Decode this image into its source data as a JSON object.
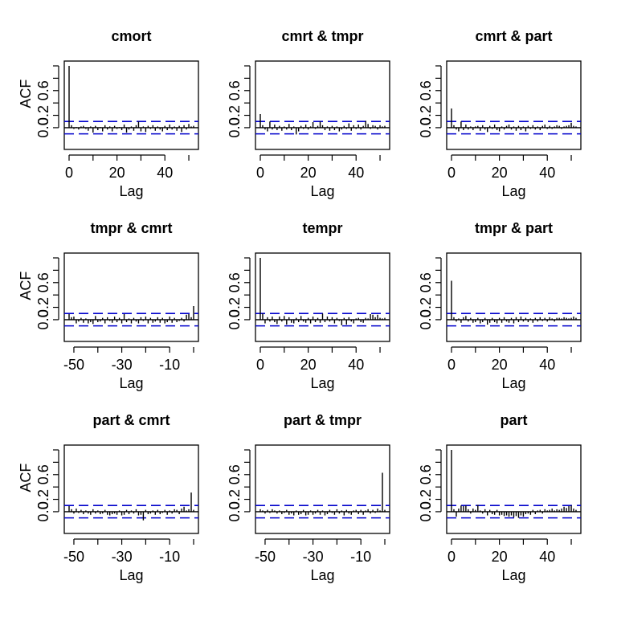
{
  "chart_data": [
    {
      "type": "bar",
      "title": "cmort",
      "xlabel": "Lag",
      "ylabel": "ACF",
      "xlim": [
        0,
        52
      ],
      "ylim": [
        -0.3,
        1.0
      ],
      "xticks": [
        0,
        20,
        40
      ],
      "yticks": [
        0,
        0.2,
        0.6
      ],
      "ytick_labels": [
        "0.0",
        "0.2",
        "0.6"
      ],
      "ci": 0.1,
      "x": [
        0,
        1,
        2,
        3,
        4,
        5,
        6,
        7,
        8,
        9,
        10,
        11,
        12,
        13,
        14,
        15,
        16,
        17,
        18,
        19,
        20,
        21,
        22,
        23,
        24,
        25,
        26,
        27,
        28,
        29,
        30,
        31,
        32,
        33,
        34,
        35,
        36,
        37,
        38,
        39,
        40,
        41,
        42,
        43,
        44,
        45,
        46,
        47,
        48,
        49,
        50,
        51,
        52
      ],
      "values": [
        1.0,
        0.04,
        -0.02,
        0.01,
        -0.03,
        0.02,
        0.03,
        -0.02,
        -0.05,
        0.02,
        -0.08,
        0.03,
        -0.04,
        0.01,
        -0.06,
        0.04,
        -0.03,
        0.02,
        -0.06,
        0.03,
        -0.02,
        0.01,
        -0.04,
        0.05,
        -0.08,
        -0.03,
        0.02,
        -0.05,
        0.04,
        0.1,
        -0.06,
        0.02,
        -0.07,
        0.03,
        -0.02,
        0.04,
        -0.05,
        0.02,
        -0.03,
        -0.06,
        0.03,
        -0.04,
        0.05,
        -0.03,
        0.02,
        -0.05,
        0.03,
        -0.07,
        0.04,
        -0.03,
        0.06,
        0.02,
        0.03
      ]
    },
    {
      "type": "bar",
      "title": "cmrt & tmpr",
      "xlabel": "Lag",
      "ylabel": "",
      "xlim": [
        0,
        52
      ],
      "ylim": [
        -0.3,
        1.0
      ],
      "xticks": [
        0,
        20,
        40
      ],
      "yticks": [
        0,
        0.2,
        0.6
      ],
      "ytick_labels": [
        "0.0",
        "0.2",
        "0.6"
      ],
      "ci": 0.1,
      "x": [
        0,
        1,
        2,
        3,
        4,
        5,
        6,
        7,
        8,
        9,
        10,
        11,
        12,
        13,
        14,
        15,
        16,
        17,
        18,
        19,
        20,
        21,
        22,
        23,
        24,
        25,
        26,
        27,
        28,
        29,
        30,
        31,
        32,
        33,
        34,
        35,
        36,
        37,
        38,
        39,
        40,
        41,
        42,
        43,
        44,
        45,
        46,
        47,
        48,
        49,
        50,
        51,
        52
      ],
      "values": [
        0.22,
        0.04,
        -0.03,
        -0.06,
        0.1,
        -0.03,
        0.05,
        -0.04,
        0.03,
        -0.05,
        0.02,
        -0.03,
        0.06,
        -0.04,
        0.02,
        -0.11,
        -0.06,
        0.03,
        -0.02,
        0.05,
        -0.03,
        0.02,
        0.09,
        -0.02,
        0.03,
        0.1,
        0.04,
        -0.04,
        0.02,
        -0.05,
        0.03,
        -0.04,
        0.02,
        -0.06,
        -0.03,
        0.03,
        -0.02,
        0.07,
        -0.05,
        0.04,
        -0.02,
        0.05,
        -0.03,
        0.03,
        0.11,
        0.06,
        -0.02,
        0.04,
        0.03,
        -0.03,
        0.04,
        0.02,
        0.03
      ]
    },
    {
      "type": "bar",
      "title": "cmrt & part",
      "xlabel": "Lag",
      "ylabel": "",
      "xlim": [
        0,
        52
      ],
      "ylim": [
        -0.3,
        1.0
      ],
      "xticks": [
        0,
        20,
        40
      ],
      "yticks": [
        0,
        0.2,
        0.6
      ],
      "ytick_labels": [
        "0.0",
        "0.2",
        "0.6"
      ],
      "ci": 0.1,
      "x": [
        0,
        1,
        2,
        3,
        4,
        5,
        6,
        7,
        8,
        9,
        10,
        11,
        12,
        13,
        14,
        15,
        16,
        17,
        18,
        19,
        20,
        21,
        22,
        23,
        24,
        25,
        26,
        27,
        28,
        29,
        30,
        31,
        32,
        33,
        34,
        35,
        36,
        37,
        38,
        39,
        40,
        41,
        42,
        43,
        44,
        45,
        46,
        47,
        48,
        49,
        50,
        51,
        52
      ],
      "values": [
        0.31,
        0.04,
        -0.03,
        -0.06,
        0.1,
        -0.04,
        0.05,
        -0.03,
        0.02,
        -0.04,
        0.02,
        0.03,
        -0.05,
        0.04,
        -0.03,
        -0.07,
        0.03,
        -0.02,
        0.05,
        -0.04,
        -0.06,
        0.02,
        -0.03,
        0.03,
        0.05,
        -0.03,
        0.02,
        -0.05,
        0.03,
        -0.04,
        0.02,
        -0.06,
        0.03,
        -0.02,
        0.04,
        -0.03,
        0.02,
        -0.04,
        0.03,
        0.05,
        -0.02,
        0.03,
        -0.02,
        0.02,
        0.04,
        0.03,
        -0.02,
        0.02,
        0.03,
        0.04,
        0.08,
        0.03,
        0.02
      ]
    },
    {
      "type": "bar",
      "title": "tmpr & cmrt",
      "xlabel": "Lag",
      "ylabel": "ACF",
      "xlim": [
        -52,
        0
      ],
      "ylim": [
        -0.3,
        1.0
      ],
      "xticks": [
        -50,
        -30,
        -10
      ],
      "yticks": [
        0,
        0.2,
        0.6
      ],
      "ytick_labels": [
        "0.0",
        "0.2",
        "0.6"
      ],
      "ci": 0.1,
      "x": [
        -52,
        -51,
        -50,
        -49,
        -48,
        -47,
        -46,
        -45,
        -44,
        -43,
        -42,
        -41,
        -40,
        -39,
        -38,
        -37,
        -36,
        -35,
        -34,
        -33,
        -32,
        -31,
        -30,
        -29,
        -28,
        -27,
        -26,
        -25,
        -24,
        -23,
        -22,
        -21,
        -20,
        -19,
        -18,
        -17,
        -16,
        -15,
        -14,
        -13,
        -12,
        -11,
        -10,
        -9,
        -8,
        -7,
        -6,
        -5,
        -4,
        -3,
        -2,
        -1,
        0
      ],
      "values": [
        0.09,
        0.04,
        0.05,
        -0.06,
        -0.03,
        0.03,
        -0.05,
        0.02,
        -0.06,
        -0.04,
        -0.07,
        0.06,
        -0.04,
        -0.03,
        0.03,
        -0.06,
        0.04,
        -0.02,
        -0.05,
        0.05,
        -0.04,
        0.03,
        -0.06,
        0.09,
        -0.04,
        0.02,
        -0.06,
        0.03,
        -0.03,
        -0.06,
        0.04,
        -0.02,
        0.05,
        -0.06,
        0.03,
        -0.05,
        -0.03,
        0.04,
        -0.05,
        0.03,
        -0.06,
        -0.04,
        0.05,
        -0.05,
        0.03,
        -0.04,
        -0.02,
        0.03,
        -0.03,
        0.08,
        0.09,
        0.04,
        0.22
      ]
    },
    {
      "type": "bar",
      "title": "tempr",
      "xlabel": "Lag",
      "ylabel": "",
      "xlim": [
        0,
        52
      ],
      "ylim": [
        -0.3,
        1.0
      ],
      "xticks": [
        0,
        20,
        40
      ],
      "yticks": [
        0,
        0.2,
        0.6
      ],
      "ytick_labels": [
        "0.0",
        "0.2",
        "0.6"
      ],
      "ci": 0.1,
      "x": [
        0,
        1,
        2,
        3,
        4,
        5,
        6,
        7,
        8,
        9,
        10,
        11,
        12,
        13,
        14,
        15,
        16,
        17,
        18,
        19,
        20,
        21,
        22,
        23,
        24,
        25,
        26,
        27,
        28,
        29,
        30,
        31,
        32,
        33,
        34,
        35,
        36,
        37,
        38,
        39,
        40,
        41,
        42,
        43,
        44,
        45,
        46,
        47,
        48,
        49,
        50,
        51,
        52
      ],
      "values": [
        1.0,
        0.1,
        -0.06,
        0.04,
        -0.03,
        0.05,
        -0.04,
        -0.07,
        0.05,
        -0.03,
        0.06,
        -0.08,
        0.04,
        -0.05,
        -0.06,
        0.03,
        -0.04,
        0.06,
        -0.03,
        -0.05,
        0.03,
        -0.06,
        0.05,
        -0.04,
        0.03,
        -0.05,
        0.1,
        -0.04,
        0.05,
        -0.03,
        0.04,
        -0.06,
        0.03,
        -0.02,
        -0.09,
        0.03,
        -0.08,
        0.04,
        -0.03,
        -0.06,
        0.02,
        0.03,
        -0.04,
        -0.05,
        0.03,
        0.02,
        0.09,
        0.08,
        0.04,
        0.08,
        0.03,
        0.02,
        0.03
      ]
    },
    {
      "type": "bar",
      "title": "tmpr & part",
      "xlabel": "Lag",
      "ylabel": "",
      "xlim": [
        0,
        52
      ],
      "ylim": [
        -0.3,
        1.0
      ],
      "xticks": [
        0,
        20,
        40
      ],
      "yticks": [
        0,
        0.2,
        0.6
      ],
      "ytick_labels": [
        "0.0",
        "0.2",
        "0.6"
      ],
      "ci": 0.1,
      "x": [
        0,
        1,
        2,
        3,
        4,
        5,
        6,
        7,
        8,
        9,
        10,
        11,
        12,
        13,
        14,
        15,
        16,
        17,
        18,
        19,
        20,
        21,
        22,
        23,
        24,
        25,
        26,
        27,
        28,
        29,
        30,
        31,
        32,
        33,
        34,
        35,
        36,
        37,
        38,
        39,
        40,
        41,
        42,
        43,
        44,
        45,
        46,
        47,
        48,
        49,
        50,
        51,
        52
      ],
      "values": [
        0.63,
        0.04,
        -0.03,
        0.02,
        -0.05,
        0.04,
        0.06,
        -0.03,
        0.03,
        -0.05,
        -0.04,
        0.03,
        -0.06,
        -0.04,
        0.03,
        -0.08,
        -0.05,
        0.03,
        -0.04,
        -0.06,
        0.03,
        -0.05,
        0.04,
        -0.03,
        -0.05,
        0.03,
        -0.06,
        0.04,
        -0.04,
        0.05,
        -0.03,
        0.03,
        -0.04,
        0.02,
        -0.05,
        0.03,
        -0.03,
        0.04,
        -0.02,
        0.03,
        -0.03,
        0.04,
        0.02,
        -0.03,
        0.03,
        0.03,
        0.02,
        0.04,
        0.03,
        0.02,
        0.03,
        0.05,
        0.03
      ]
    },
    {
      "type": "bar",
      "title": "part & cmrt",
      "xlabel": "Lag",
      "ylabel": "ACF",
      "xlim": [
        -52,
        0
      ],
      "ylim": [
        -0.3,
        1.0
      ],
      "xticks": [
        -50,
        -30,
        -10
      ],
      "yticks": [
        0,
        0.2,
        0.6
      ],
      "ytick_labels": [
        "0.0",
        "0.2",
        "0.6"
      ],
      "ci": 0.1,
      "x": [
        -52,
        -51,
        -50,
        -49,
        -48,
        -47,
        -46,
        -45,
        -44,
        -43,
        -42,
        -41,
        -40,
        -39,
        -38,
        -37,
        -36,
        -35,
        -34,
        -33,
        -32,
        -31,
        -30,
        -29,
        -28,
        -27,
        -26,
        -25,
        -24,
        -23,
        -22,
        -21,
        -20,
        -19,
        -18,
        -17,
        -16,
        -15,
        -14,
        -13,
        -12,
        -11,
        -10,
        -9,
        -8,
        -7,
        -6,
        -5,
        -4,
        -3,
        -2,
        -1,
        0
      ],
      "values": [
        0.09,
        0.04,
        -0.03,
        0.05,
        -0.02,
        0.03,
        -0.04,
        0.02,
        -0.03,
        -0.05,
        0.04,
        -0.03,
        0.02,
        -0.04,
        -0.03,
        0.03,
        -0.05,
        -0.06,
        -0.04,
        -0.03,
        -0.05,
        0.02,
        -0.06,
        -0.05,
        0.03,
        -0.04,
        0.02,
        -0.03,
        0.04,
        -0.06,
        -0.05,
        -0.14,
        0.03,
        -0.04,
        -0.03,
        0.02,
        -0.05,
        0.03,
        -0.04,
        -0.02,
        0.03,
        -0.05,
        0.02,
        -0.03,
        0.04,
        0.03,
        -0.04,
        0.05,
        0.08,
        0.02,
        0.04,
        0.31,
        0.03
      ]
    },
    {
      "type": "bar",
      "title": "part & tmpr",
      "xlabel": "Lag",
      "ylabel": "",
      "xlim": [
        -52,
        0
      ],
      "ylim": [
        -0.3,
        1.0
      ],
      "xticks": [
        -50,
        -30,
        -10
      ],
      "yticks": [
        0,
        0.2,
        0.6
      ],
      "ytick_labels": [
        "0.0",
        "0.2",
        "0.6"
      ],
      "ci": 0.1,
      "x": [
        -52,
        -51,
        -50,
        -49,
        -48,
        -47,
        -46,
        -45,
        -44,
        -43,
        -42,
        -41,
        -40,
        -39,
        -38,
        -37,
        -36,
        -35,
        -34,
        -33,
        -32,
        -31,
        -30,
        -29,
        -28,
        -27,
        -26,
        -25,
        -24,
        -23,
        -22,
        -21,
        -20,
        -19,
        -18,
        -17,
        -16,
        -15,
        -14,
        -13,
        -12,
        -11,
        -10,
        -9,
        -8,
        -7,
        -6,
        -5,
        -4,
        -3,
        -2,
        -1,
        0
      ],
      "values": [
        0.04,
        0.02,
        -0.03,
        0.03,
        -0.02,
        0.04,
        0.02,
        -0.03,
        0.02,
        -0.04,
        -0.02,
        0.03,
        -0.05,
        -0.03,
        -0.06,
        0.02,
        -0.05,
        -0.04,
        0.03,
        -0.06,
        -0.05,
        0.02,
        -0.05,
        -0.03,
        0.03,
        -0.05,
        0.02,
        -0.06,
        -0.04,
        0.03,
        -0.02,
        -0.05,
        0.04,
        -0.03,
        0.02,
        -0.06,
        0.03,
        -0.03,
        -0.05,
        0.02,
        0.03,
        -0.04,
        0.03,
        -0.05,
        0.02,
        0.04,
        -0.03,
        0.03,
        -0.02,
        0.05,
        0.02,
        0.63,
        0.03
      ]
    },
    {
      "type": "bar",
      "title": "part",
      "xlabel": "Lag",
      "ylabel": "",
      "xlim": [
        0,
        52
      ],
      "ylim": [
        -0.3,
        1.0
      ],
      "xticks": [
        0,
        20,
        40
      ],
      "yticks": [
        0,
        0.2,
        0.6
      ],
      "ytick_labels": [
        "0.0",
        "0.2",
        "0.6"
      ],
      "ci": 0.1,
      "x": [
        0,
        1,
        2,
        3,
        4,
        5,
        6,
        7,
        8,
        9,
        10,
        11,
        12,
        13,
        14,
        15,
        16,
        17,
        18,
        19,
        20,
        21,
        22,
        23,
        24,
        25,
        26,
        27,
        28,
        29,
        30,
        31,
        32,
        33,
        34,
        35,
        36,
        37,
        38,
        39,
        40,
        41,
        42,
        43,
        44,
        45,
        46,
        47,
        48,
        49,
        50,
        51,
        52
      ],
      "values": [
        1.0,
        0.04,
        -0.08,
        0.05,
        0.1,
        0.09,
        0.1,
        0.04,
        -0.03,
        0.05,
        0.03,
        0.11,
        0.02,
        -0.03,
        0.04,
        -0.06,
        0.03,
        -0.04,
        -0.05,
        0.03,
        -0.06,
        -0.05,
        -0.07,
        -0.06,
        -0.08,
        -0.06,
        -0.09,
        -0.07,
        -0.1,
        -0.06,
        -0.08,
        -0.04,
        -0.03,
        -0.05,
        0.03,
        -0.04,
        0.02,
        0.03,
        -0.03,
        0.04,
        0.02,
        0.03,
        0.05,
        0.02,
        0.04,
        0.03,
        0.05,
        0.08,
        0.06,
        0.09,
        0.1,
        0.05,
        0.03
      ]
    }
  ]
}
